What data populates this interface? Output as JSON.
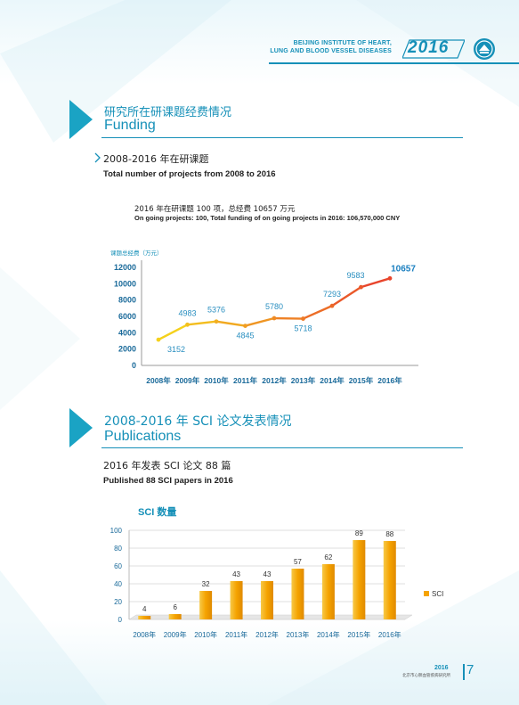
{
  "header": {
    "institute_line1": "BEIJING INSTITUTE OF HEART,",
    "institute_line2": "LUNG AND BLOOD VESSEL DISEASES",
    "year": "2016"
  },
  "colors": {
    "accent": "#1690b8",
    "triangle": "#1aa3c4",
    "line_start": "#f5d11c",
    "line_end": "#e8452c",
    "bar": "#f5a300"
  },
  "section1": {
    "title_zh": "研究所在研课题经费情况",
    "title_en": "Funding",
    "subtitle_zh": "2008-2016 年在研课题",
    "subtitle_en": "Total number of projects from 2008 to 2016",
    "note_zh": "2016 年在研课题 100 项，总经费 10657 万元",
    "note_en": "On going projects: 100, Total funding of on going projects in 2016: 106,570,000 CNY"
  },
  "section2": {
    "title_zh": "2008-2016 年 SCI 论文发表情况",
    "title_en": "Publications",
    "subtitle_zh": "2016 年发表 SCI 论文 88 篇",
    "subtitle_en": "Published 88 SCI papers in 2016"
  },
  "chart_data": [
    {
      "type": "line",
      "ylabel": "课题总经费（万元）",
      "categories": [
        "2008年",
        "2009年",
        "2010年",
        "2011年",
        "2012年",
        "2013年",
        "2014年",
        "2015年",
        "2016年"
      ],
      "values": [
        3152,
        4983,
        5376,
        4845,
        5780,
        5718,
        7293,
        9583,
        10657
      ],
      "value_labels": [
        "3152",
        "4983",
        "5376",
        "4845",
        "5780",
        "5718",
        "7293",
        "9583",
        "10657"
      ],
      "yticks": [
        "0",
        "2000",
        "4000",
        "6000",
        "8000",
        "10000",
        "12000"
      ],
      "ylim": [
        0,
        12000
      ],
      "grid": false
    },
    {
      "type": "bar",
      "title": "SCI 数量",
      "categories": [
        "2008年",
        "2009年",
        "2010年",
        "2011年",
        "2012年",
        "2013年",
        "2014年",
        "2015年",
        "2016年"
      ],
      "values": [
        4,
        6,
        32,
        43,
        43,
        57,
        62,
        89,
        88
      ],
      "value_labels": [
        "4",
        "6",
        "32",
        "43",
        "43",
        "57",
        "62",
        "89",
        "88"
      ],
      "yticks": [
        "0",
        "20",
        "40",
        "60",
        "80",
        "100"
      ],
      "ylim": [
        0,
        100
      ],
      "grid": true,
      "legend": "SCI",
      "legend_position": "right"
    }
  ],
  "footer": {
    "year": "2016",
    "org": "北京市心肺血管疾病研究所",
    "page": "7"
  }
}
